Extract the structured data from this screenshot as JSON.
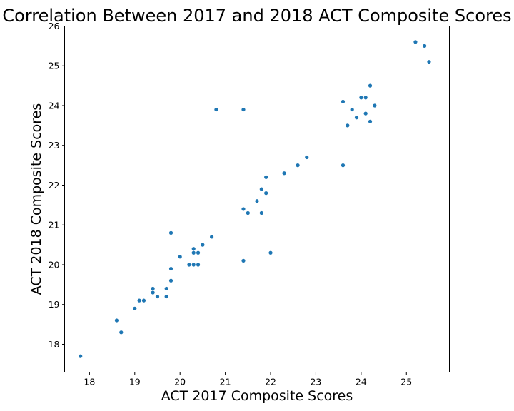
{
  "chart_data": {
    "type": "scatter",
    "title": "Correlation Between 2017 and 2018 ACT Composite Scores",
    "xlabel": "ACT 2017 Composite Scores",
    "ylabel": "ACT 2018 Composite Scores",
    "xlim": [
      17.45,
      25.95
    ],
    "ylim": [
      17.3,
      26.0
    ],
    "xticks": [
      18,
      19,
      20,
      21,
      22,
      23,
      24,
      25
    ],
    "yticks": [
      18,
      19,
      20,
      21,
      22,
      23,
      24,
      25,
      26
    ],
    "grid": false,
    "marker_color": "#1f77b4",
    "points": [
      {
        "x": 17.8,
        "y": 17.7
      },
      {
        "x": 18.6,
        "y": 18.6
      },
      {
        "x": 18.7,
        "y": 18.3
      },
      {
        "x": 19.0,
        "y": 18.9
      },
      {
        "x": 19.1,
        "y": 19.1
      },
      {
        "x": 19.2,
        "y": 19.1
      },
      {
        "x": 19.4,
        "y": 19.3
      },
      {
        "x": 19.4,
        "y": 19.4
      },
      {
        "x": 19.5,
        "y": 19.2
      },
      {
        "x": 19.7,
        "y": 19.2
      },
      {
        "x": 19.7,
        "y": 19.4
      },
      {
        "x": 19.8,
        "y": 19.6
      },
      {
        "x": 19.8,
        "y": 19.9
      },
      {
        "x": 19.8,
        "y": 20.8
      },
      {
        "x": 20.0,
        "y": 20.2
      },
      {
        "x": 20.2,
        "y": 20.0
      },
      {
        "x": 20.3,
        "y": 20.0
      },
      {
        "x": 20.4,
        "y": 20.0
      },
      {
        "x": 20.3,
        "y": 20.3
      },
      {
        "x": 20.3,
        "y": 20.4
      },
      {
        "x": 20.4,
        "y": 20.3
      },
      {
        "x": 20.5,
        "y": 20.5
      },
      {
        "x": 20.7,
        "y": 20.7
      },
      {
        "x": 20.8,
        "y": 23.9
      },
      {
        "x": 21.4,
        "y": 23.9
      },
      {
        "x": 21.4,
        "y": 21.4
      },
      {
        "x": 21.5,
        "y": 21.3
      },
      {
        "x": 21.4,
        "y": 20.1
      },
      {
        "x": 21.7,
        "y": 21.6
      },
      {
        "x": 21.8,
        "y": 21.9
      },
      {
        "x": 21.8,
        "y": 21.3
      },
      {
        "x": 21.9,
        "y": 21.8
      },
      {
        "x": 21.9,
        "y": 22.2
      },
      {
        "x": 22.0,
        "y": 20.3
      },
      {
        "x": 22.3,
        "y": 22.3
      },
      {
        "x": 22.6,
        "y": 22.5
      },
      {
        "x": 22.8,
        "y": 22.7
      },
      {
        "x": 23.6,
        "y": 22.5
      },
      {
        "x": 23.6,
        "y": 24.1
      },
      {
        "x": 23.7,
        "y": 23.5
      },
      {
        "x": 23.8,
        "y": 23.9
      },
      {
        "x": 23.9,
        "y": 23.7
      },
      {
        "x": 24.0,
        "y": 24.2
      },
      {
        "x": 24.1,
        "y": 24.2
      },
      {
        "x": 24.1,
        "y": 23.8
      },
      {
        "x": 24.2,
        "y": 24.5
      },
      {
        "x": 24.2,
        "y": 23.6
      },
      {
        "x": 24.3,
        "y": 24.0
      },
      {
        "x": 25.2,
        "y": 25.6
      },
      {
        "x": 25.4,
        "y": 25.5
      },
      {
        "x": 25.5,
        "y": 25.1
      }
    ]
  }
}
